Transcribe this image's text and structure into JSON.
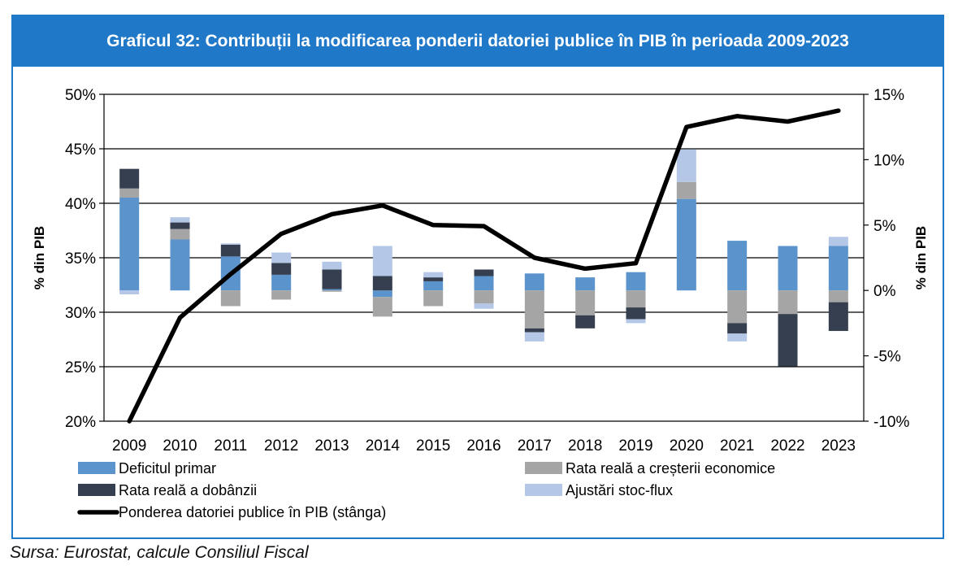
{
  "title": "Graficul 32: Contribuții la modificarea ponderii datoriei publice în PIB în perioada 2009-2023",
  "source": "Sursa: Eurostat, calcule Consiliul Fiscal",
  "chart_data": {
    "type": "bar",
    "stacked": true,
    "categories": [
      "2009",
      "2010",
      "2011",
      "2012",
      "2013",
      "2014",
      "2015",
      "2016",
      "2017",
      "2018",
      "2019",
      "2020",
      "2021",
      "2022",
      "2023"
    ],
    "left_axis": {
      "label": "% din PIB",
      "ylim": [
        20,
        50
      ],
      "ticks": [
        "20%",
        "25%",
        "30%",
        "35%",
        "40%",
        "45%",
        "50%"
      ]
    },
    "right_axis": {
      "label": "% din PIB",
      "ylim": [
        -10,
        15
      ],
      "ticks": [
        "-10%",
        "-5%",
        "0%",
        "5%",
        "10%",
        "15%"
      ]
    },
    "grid": true,
    "legend_placement": "bottom",
    "colors": {
      "primary_deficit": "#5b93cc",
      "real_growth": "#a5a5a5",
      "real_interest": "#353f4f",
      "stock_flow": "#b4c7e7",
      "debt_line": "#000000"
    },
    "series": [
      {
        "key": "primary_deficit",
        "name": "Deficitul primar",
        "axis": "right",
        "values": [
          7.1,
          3.9,
          2.6,
          1.2,
          0.1,
          -0.5,
          0.7,
          1.1,
          1.3,
          1.0,
          1.4,
          7.0,
          3.8,
          3.4,
          3.4
        ]
      },
      {
        "key": "real_growth",
        "name": "Rata reală a creșterii economice",
        "axis": "right",
        "values": [
          0.7,
          0.8,
          -1.2,
          -0.7,
          -0.1,
          -1.5,
          -1.2,
          -1.0,
          -2.9,
          -1.9,
          -1.3,
          1.3,
          -2.5,
          -1.8,
          -0.9
        ]
      },
      {
        "key": "real_interest",
        "name": "Rata reală a dobânzii",
        "axis": "right",
        "values": [
          1.5,
          0.5,
          0.9,
          0.9,
          1.5,
          1.1,
          0.3,
          0.5,
          -0.3,
          -1.0,
          -0.9,
          0.0,
          -0.8,
          -4.0,
          -2.2
        ]
      },
      {
        "key": "stock_flow",
        "name": "Ajustări stoc-flux",
        "axis": "right",
        "values": [
          -0.3,
          0.4,
          0.1,
          0.8,
          0.6,
          2.3,
          0.4,
          -0.4,
          -0.7,
          0.0,
          -0.3,
          2.5,
          -0.6,
          0.0,
          0.7
        ]
      },
      {
        "key": "debt_line",
        "name": "Ponderea datoriei publice în PIB (stânga)",
        "type": "line",
        "axis": "left",
        "values": [
          20.0,
          29.5,
          33.5,
          37.2,
          39.0,
          39.8,
          38.0,
          37.9,
          35.0,
          34.0,
          34.5,
          47.0,
          48.0,
          47.5,
          48.5
        ]
      }
    ]
  }
}
